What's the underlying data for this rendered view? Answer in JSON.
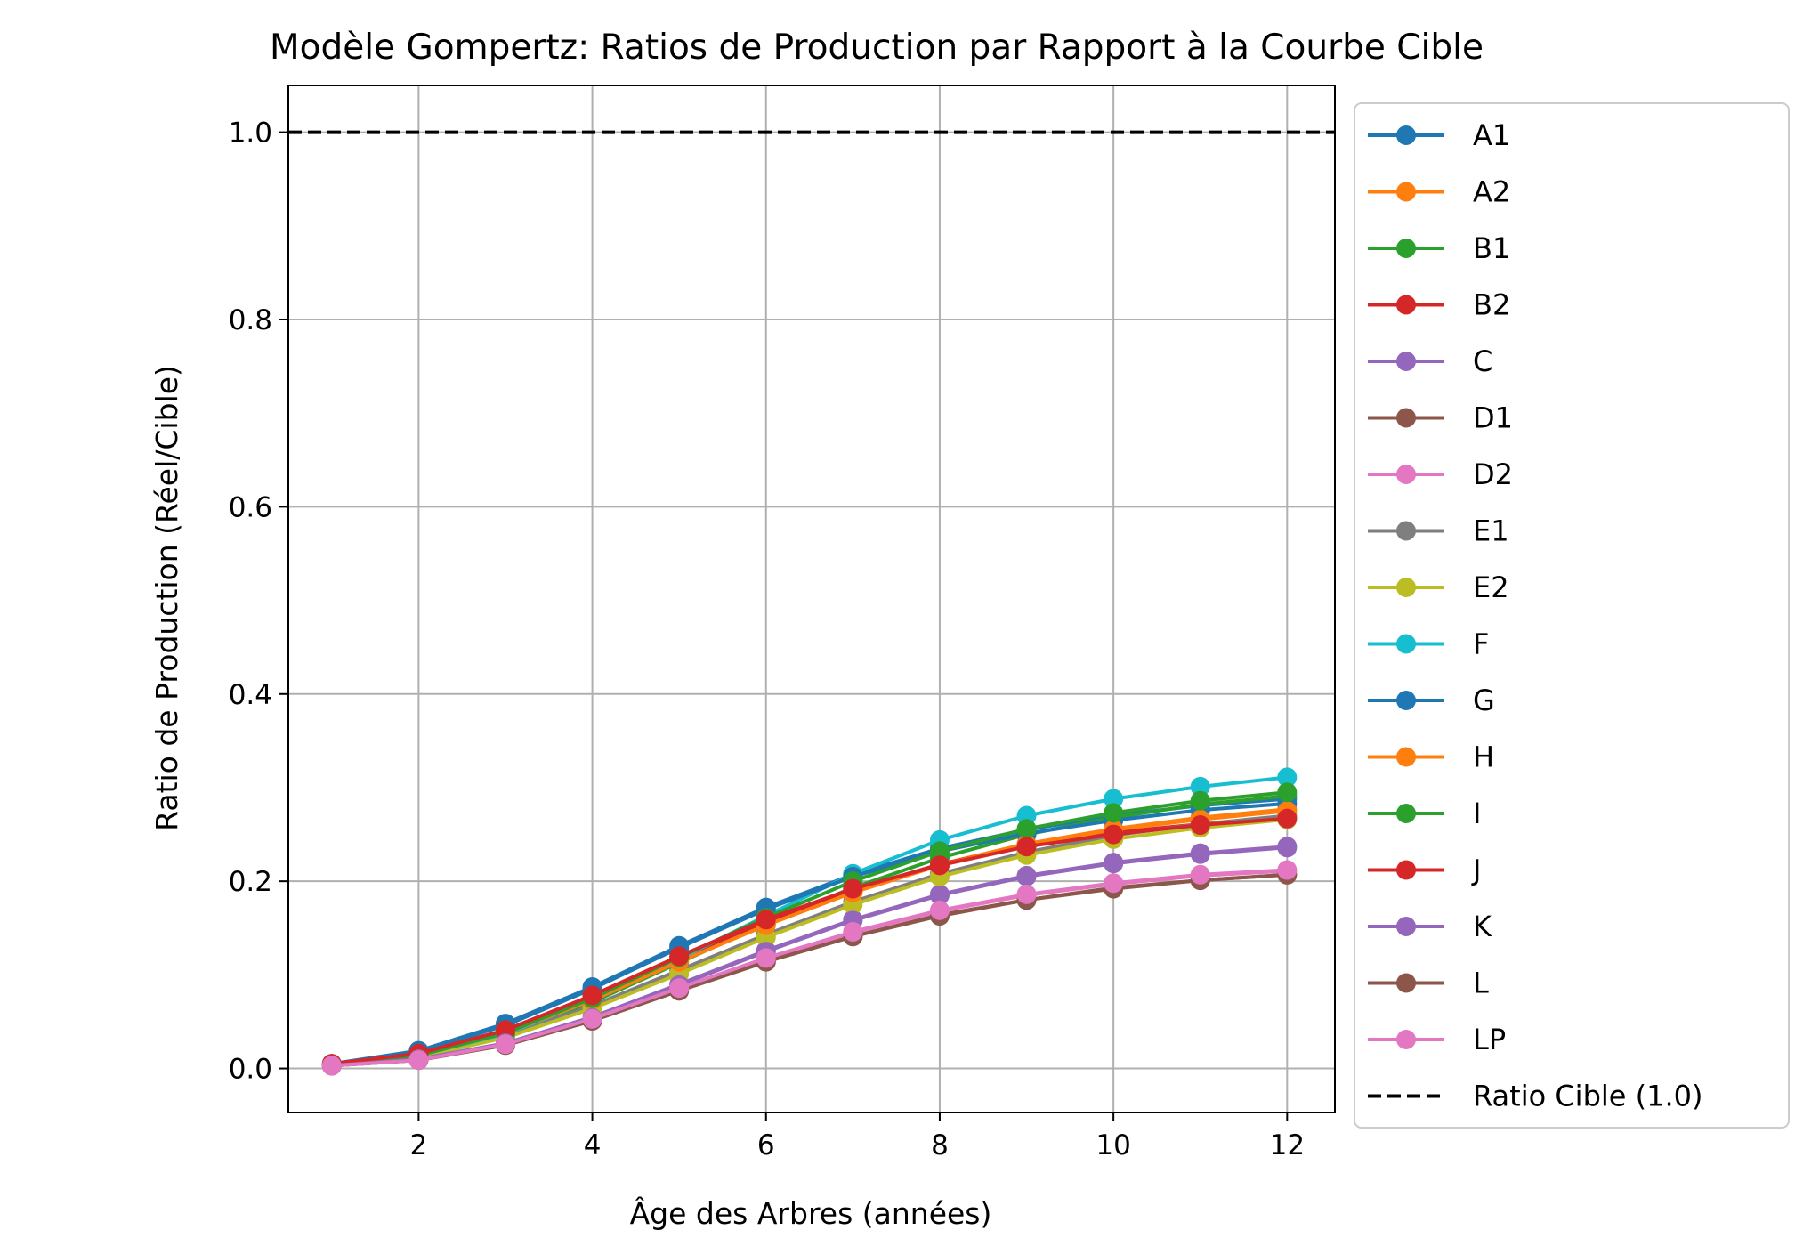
{
  "chart_data": {
    "type": "line",
    "title": "Modèle Gompertz: Ratios de Production par Rapport à la Courbe Cible",
    "xlabel": "Âge des Arbres (années)",
    "ylabel": "Ratio de Production (Réel/Cible)",
    "xlim": [
      0.5,
      12.55
    ],
    "ylim": [
      -0.047,
      1.05
    ],
    "xticks": [
      2,
      4,
      6,
      8,
      10,
      12
    ],
    "yticks": [
      0.0,
      0.2,
      0.4,
      0.6,
      0.8,
      1.0
    ],
    "xtick_labels": [
      "2",
      "4",
      "6",
      "8",
      "10",
      "12"
    ],
    "ytick_labels": [
      "0.0",
      "0.2",
      "0.4",
      "0.6",
      "0.8",
      "1.0"
    ],
    "grid": true,
    "legend_position": "outside-right",
    "x": [
      1,
      2,
      3,
      4,
      5,
      6,
      7,
      8,
      9,
      10,
      11,
      12
    ],
    "series": [
      {
        "name": "A1",
        "color": "#1f77b4",
        "values": [
          0.005,
          0.019,
          0.048,
          0.087,
          0.131,
          0.172,
          0.207,
          0.235,
          0.255,
          0.27,
          0.281,
          0.288
        ]
      },
      {
        "name": "A2",
        "color": "#ff7f0e",
        "values": [
          0.004,
          0.015,
          0.039,
          0.074,
          0.115,
          0.154,
          0.189,
          0.218,
          0.24,
          0.256,
          0.268,
          0.277
        ]
      },
      {
        "name": "B1",
        "color": "#2ca02c",
        "values": [
          0.004,
          0.013,
          0.036,
          0.071,
          0.113,
          0.155,
          0.193,
          0.225,
          0.25,
          0.268,
          0.282,
          0.291
        ]
      },
      {
        "name": "B2",
        "color": "#d62728",
        "values": [
          0.005,
          0.016,
          0.041,
          0.077,
          0.118,
          0.157,
          0.191,
          0.218,
          0.238,
          0.252,
          0.261,
          0.268
        ]
      },
      {
        "name": "C",
        "color": "#9467bd",
        "values": [
          0.003,
          0.01,
          0.027,
          0.055,
          0.09,
          0.126,
          0.159,
          0.186,
          0.206,
          0.22,
          0.23,
          0.237
        ]
      },
      {
        "name": "D1",
        "color": "#8c564b",
        "values": [
          0.003,
          0.009,
          0.025,
          0.051,
          0.083,
          0.114,
          0.141,
          0.164,
          0.18,
          0.193,
          0.201,
          0.207
        ]
      },
      {
        "name": "D2",
        "color": "#e377c2",
        "values": [
          0.003,
          0.009,
          0.026,
          0.052,
          0.085,
          0.117,
          0.145,
          0.168,
          0.185,
          0.197,
          0.206,
          0.211
        ]
      },
      {
        "name": "E1",
        "color": "#7f7f7f",
        "values": [
          0.004,
          0.013,
          0.035,
          0.067,
          0.105,
          0.143,
          0.178,
          0.208,
          0.231,
          0.249,
          0.261,
          0.27
        ]
      },
      {
        "name": "E2",
        "color": "#bcbd22",
        "values": [
          0.004,
          0.012,
          0.033,
          0.064,
          0.101,
          0.14,
          0.175,
          0.205,
          0.228,
          0.245,
          0.257,
          0.266
        ]
      },
      {
        "name": "F",
        "color": "#17becf",
        "values": [
          0.004,
          0.014,
          0.037,
          0.073,
          0.117,
          0.163,
          0.208,
          0.244,
          0.27,
          0.288,
          0.301,
          0.311
        ]
      },
      {
        "name": "G",
        "color": "#1f77b4",
        "values": [
          0.005,
          0.018,
          0.046,
          0.085,
          0.129,
          0.17,
          0.205,
          0.232,
          0.251,
          0.265,
          0.276,
          0.283
        ]
      },
      {
        "name": "H",
        "color": "#ff7f0e",
        "values": [
          0.004,
          0.014,
          0.038,
          0.073,
          0.114,
          0.153,
          0.188,
          0.217,
          0.239,
          0.255,
          0.266,
          0.275
        ]
      },
      {
        "name": "I",
        "color": "#2ca02c",
        "values": [
          0.004,
          0.014,
          0.038,
          0.075,
          0.119,
          0.161,
          0.2,
          0.232,
          0.256,
          0.273,
          0.286,
          0.295
        ]
      },
      {
        "name": "J",
        "color": "#d62728",
        "values": [
          0.005,
          0.016,
          0.041,
          0.078,
          0.12,
          0.159,
          0.192,
          0.217,
          0.237,
          0.25,
          0.26,
          0.267
        ]
      },
      {
        "name": "K",
        "color": "#9467bd",
        "values": [
          0.003,
          0.01,
          0.027,
          0.054,
          0.089,
          0.125,
          0.158,
          0.185,
          0.205,
          0.219,
          0.229,
          0.236
        ]
      },
      {
        "name": "L",
        "color": "#8c564b",
        "values": [
          0.003,
          0.009,
          0.025,
          0.051,
          0.083,
          0.114,
          0.141,
          0.163,
          0.18,
          0.192,
          0.201,
          0.207
        ]
      },
      {
        "name": "LP",
        "color": "#e377c2",
        "values": [
          0.003,
          0.009,
          0.026,
          0.053,
          0.086,
          0.118,
          0.146,
          0.169,
          0.186,
          0.198,
          0.207,
          0.212
        ]
      }
    ],
    "reference_line": {
      "name": "Ratio Cible (1.0)",
      "y": 1.0,
      "color": "#000000",
      "style": "dashed"
    }
  }
}
